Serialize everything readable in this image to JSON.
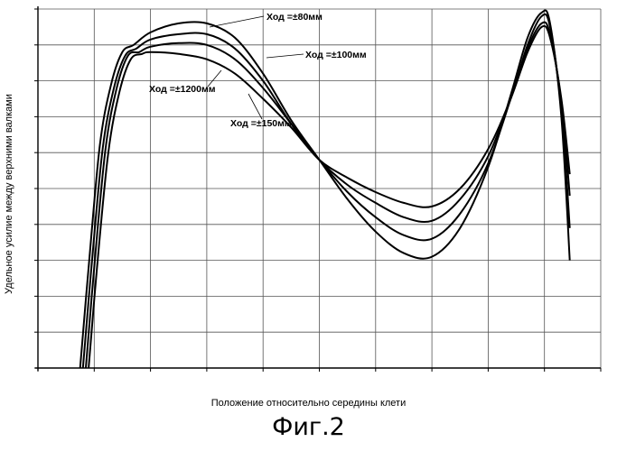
{
  "chart_data": {
    "type": "line",
    "title": "",
    "xlabel": "Положение относительно середины клети",
    "ylabel": "Удельное усилие между верхними валками",
    "xlim": [
      0,
      10
    ],
    "ylim": [
      0,
      10
    ],
    "grid": true,
    "annotations": [
      {
        "text": "Ход =±80мм",
        "series": 0
      },
      {
        "text": "Ход =±100мм",
        "series": 1
      },
      {
        "text": "Ход =±1200мм",
        "series": 3
      },
      {
        "text": "Ход =±150мм",
        "series": 2
      }
    ],
    "series": [
      {
        "x": [
          0.75,
          0.9,
          1.1,
          1.3,
          1.5,
          1.7,
          2.0,
          2.5,
          3.0,
          3.5,
          4.0,
          4.5,
          5.0,
          5.5,
          6.0,
          6.5,
          7.0,
          7.5,
          8.0,
          8.4,
          8.7,
          8.95,
          9.1,
          9.3,
          9.45
        ],
        "y": [
          0.0,
          2.8,
          6.2,
          7.9,
          8.8,
          9.0,
          9.35,
          9.6,
          9.6,
          9.2,
          8.2,
          6.9,
          5.8,
          4.7,
          3.8,
          3.2,
          3.1,
          3.9,
          5.6,
          7.6,
          9.2,
          9.9,
          9.6,
          7.0,
          3.0
        ]
      },
      {
        "x": [
          0.8,
          0.95,
          1.15,
          1.35,
          1.55,
          1.75,
          2.0,
          2.5,
          3.0,
          3.5,
          4.0,
          4.5,
          5.0,
          5.5,
          6.0,
          6.5,
          7.0,
          7.5,
          8.0,
          8.4,
          8.7,
          8.95,
          9.1,
          9.3,
          9.45
        ],
        "y": [
          0.0,
          2.8,
          6.1,
          7.8,
          8.7,
          8.9,
          9.15,
          9.3,
          9.3,
          8.9,
          8.0,
          6.8,
          5.8,
          4.9,
          4.2,
          3.7,
          3.6,
          4.3,
          5.7,
          7.5,
          9.0,
          9.8,
          9.5,
          7.2,
          3.9
        ]
      },
      {
        "x": [
          0.85,
          1.0,
          1.2,
          1.4,
          1.6,
          1.8,
          2.0,
          2.5,
          3.0,
          3.5,
          4.0,
          4.5,
          5.0,
          5.5,
          6.0,
          6.5,
          7.0,
          7.5,
          8.0,
          8.4,
          8.7,
          8.95,
          9.1,
          9.3,
          9.45
        ],
        "y": [
          0.0,
          2.8,
          6.1,
          7.8,
          8.7,
          8.8,
          8.95,
          9.05,
          9.0,
          8.6,
          7.8,
          6.8,
          5.8,
          5.1,
          4.6,
          4.2,
          4.1,
          4.7,
          5.9,
          7.5,
          8.9,
          9.6,
          9.3,
          7.4,
          4.8
        ]
      },
      {
        "x": [
          0.9,
          1.05,
          1.25,
          1.45,
          1.65,
          1.85,
          2.0,
          2.5,
          3.0,
          3.5,
          4.0,
          4.5,
          5.0,
          5.5,
          6.0,
          6.5,
          7.0,
          7.5,
          8.0,
          8.4,
          8.7,
          8.95,
          9.1,
          9.3,
          9.45
        ],
        "y": [
          0.0,
          2.8,
          6.0,
          7.7,
          8.6,
          8.75,
          8.8,
          8.75,
          8.6,
          8.2,
          7.5,
          6.7,
          5.8,
          5.3,
          4.9,
          4.6,
          4.5,
          5.0,
          6.1,
          7.5,
          8.8,
          9.5,
          9.2,
          7.5,
          5.4
        ]
      }
    ]
  },
  "caption": "Фиг.2"
}
